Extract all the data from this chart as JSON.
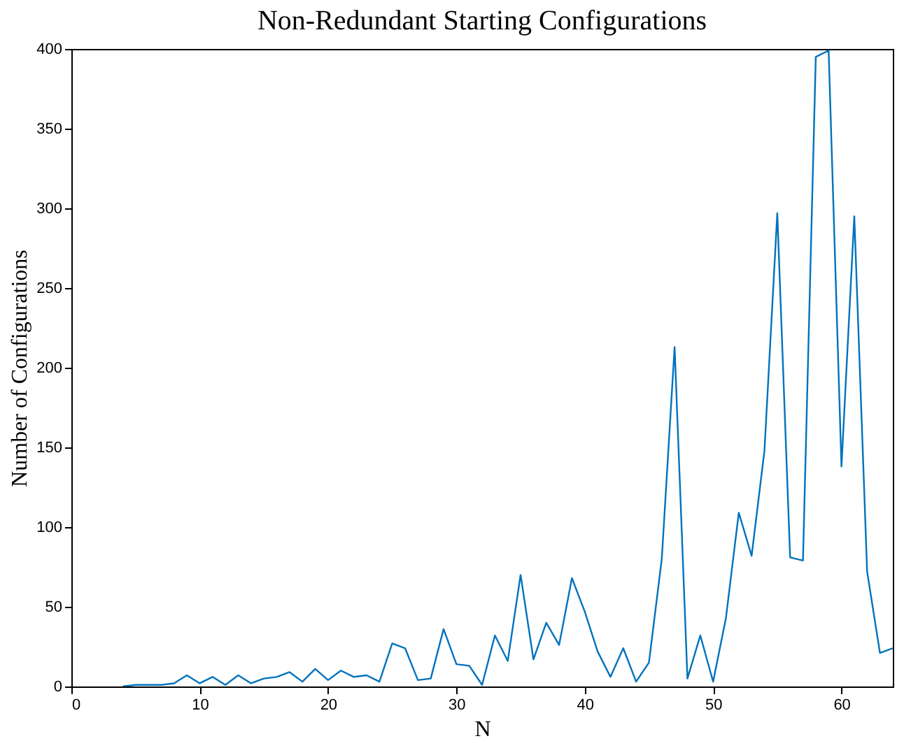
{
  "chart_data": {
    "type": "line",
    "title": "Non-Redundant Starting Configurations",
    "xlabel": "N",
    "ylabel": "Number of Configurations",
    "x": [
      4,
      5,
      6,
      7,
      8,
      9,
      10,
      11,
      12,
      13,
      14,
      15,
      16,
      17,
      18,
      19,
      20,
      21,
      22,
      23,
      24,
      25,
      26,
      27,
      28,
      29,
      30,
      31,
      32,
      33,
      34,
      35,
      36,
      37,
      38,
      39,
      40,
      41,
      42,
      43,
      44,
      45,
      46,
      47,
      48,
      49,
      50,
      51,
      52,
      53,
      54,
      55,
      56,
      57,
      58,
      59,
      60,
      61,
      62,
      63,
      64
    ],
    "series": [
      {
        "color": "#0072bd",
        "values": [
          0,
          1,
          1,
          1,
          2,
          7,
          2,
          6,
          1,
          7,
          2,
          5,
          6,
          9,
          3,
          11,
          4,
          10,
          6,
          7,
          3,
          27,
          24,
          4,
          5,
          36,
          14,
          13,
          1,
          32,
          16,
          70,
          17,
          40,
          26,
          68,
          47,
          22,
          6,
          24,
          3,
          15,
          80,
          213,
          5,
          32,
          3,
          43,
          109,
          82,
          148,
          297,
          81,
          79,
          395,
          399,
          138,
          295,
          72,
          21,
          24
        ]
      }
    ],
    "xlim": [
      0,
      64
    ],
    "xticks": [
      0,
      10,
      20,
      30,
      40,
      50,
      60
    ],
    "ylim": [
      0,
      400
    ],
    "yticks": [
      0,
      50,
      100,
      150,
      200,
      250,
      300,
      350,
      400
    ],
    "grid": false,
    "marker": "none",
    "line_style": "solid"
  }
}
